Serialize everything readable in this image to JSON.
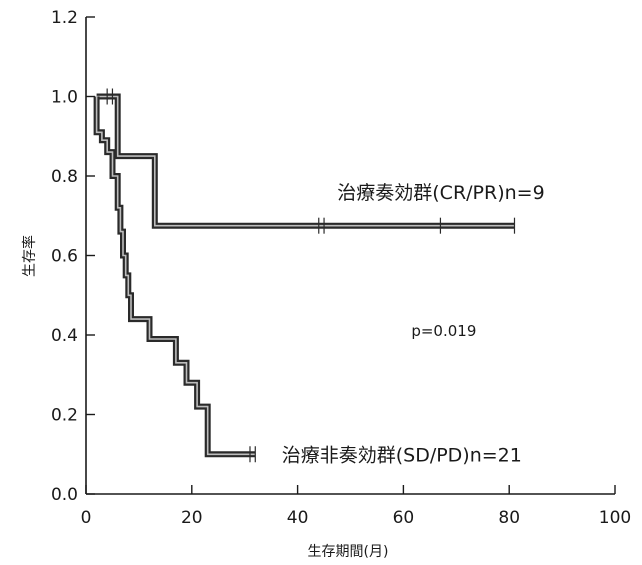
{
  "chart_data": {
    "type": "line",
    "step": true,
    "xlabel": "生存期間(月)",
    "ylabel": "生存率",
    "xlim": [
      0,
      100
    ],
    "ylim": [
      0,
      1.2
    ],
    "xticks": [
      "0",
      "20",
      "40",
      "60",
      "80",
      "100"
    ],
    "yticks": [
      "0.0",
      "0.2",
      "0.4",
      "0.6",
      "0.8",
      "1.0",
      "1.2"
    ],
    "grid": false,
    "annotations": [
      {
        "text": "p=0.019",
        "x": 61.5,
        "y": 0.41
      }
    ],
    "series": [
      {
        "name": "治療奏効群(CR/PR)n=9",
        "label_at": {
          "x": 47.5,
          "y": 0.76
        },
        "points": [
          [
            2,
            1.0
          ],
          [
            6,
            1.0
          ],
          [
            6,
            0.85
          ],
          [
            13,
            0.85
          ],
          [
            13,
            0.675
          ],
          [
            81,
            0.675
          ]
        ],
        "censored": [
          [
            4,
            1.0
          ],
          [
            5,
            1.0
          ],
          [
            44,
            0.675
          ],
          [
            45,
            0.675
          ],
          [
            67,
            0.675
          ],
          [
            81,
            0.675
          ]
        ]
      },
      {
        "name": "治療非奏効群(SD/PD)n=21",
        "label_at": {
          "x": 37,
          "y": 0.1
        },
        "points": [
          [
            2,
            1.0
          ],
          [
            2,
            0.91
          ],
          [
            3,
            0.91
          ],
          [
            3,
            0.89
          ],
          [
            4,
            0.89
          ],
          [
            4,
            0.86
          ],
          [
            5,
            0.86
          ],
          [
            5,
            0.8
          ],
          [
            6,
            0.8
          ],
          [
            6,
            0.72
          ],
          [
            6.5,
            0.72
          ],
          [
            6.5,
            0.66
          ],
          [
            7,
            0.66
          ],
          [
            7,
            0.6
          ],
          [
            7.5,
            0.6
          ],
          [
            7.5,
            0.55
          ],
          [
            8,
            0.55
          ],
          [
            8,
            0.5
          ],
          [
            8.5,
            0.5
          ],
          [
            8.5,
            0.44
          ],
          [
            12,
            0.44
          ],
          [
            12,
            0.39
          ],
          [
            17,
            0.39
          ],
          [
            17,
            0.33
          ],
          [
            19,
            0.33
          ],
          [
            19,
            0.28
          ],
          [
            21,
            0.28
          ],
          [
            21,
            0.22
          ],
          [
            23,
            0.22
          ],
          [
            23,
            0.1
          ],
          [
            32,
            0.1
          ]
        ],
        "censored": [
          [
            31,
            0.1
          ],
          [
            32,
            0.1
          ]
        ]
      }
    ]
  }
}
